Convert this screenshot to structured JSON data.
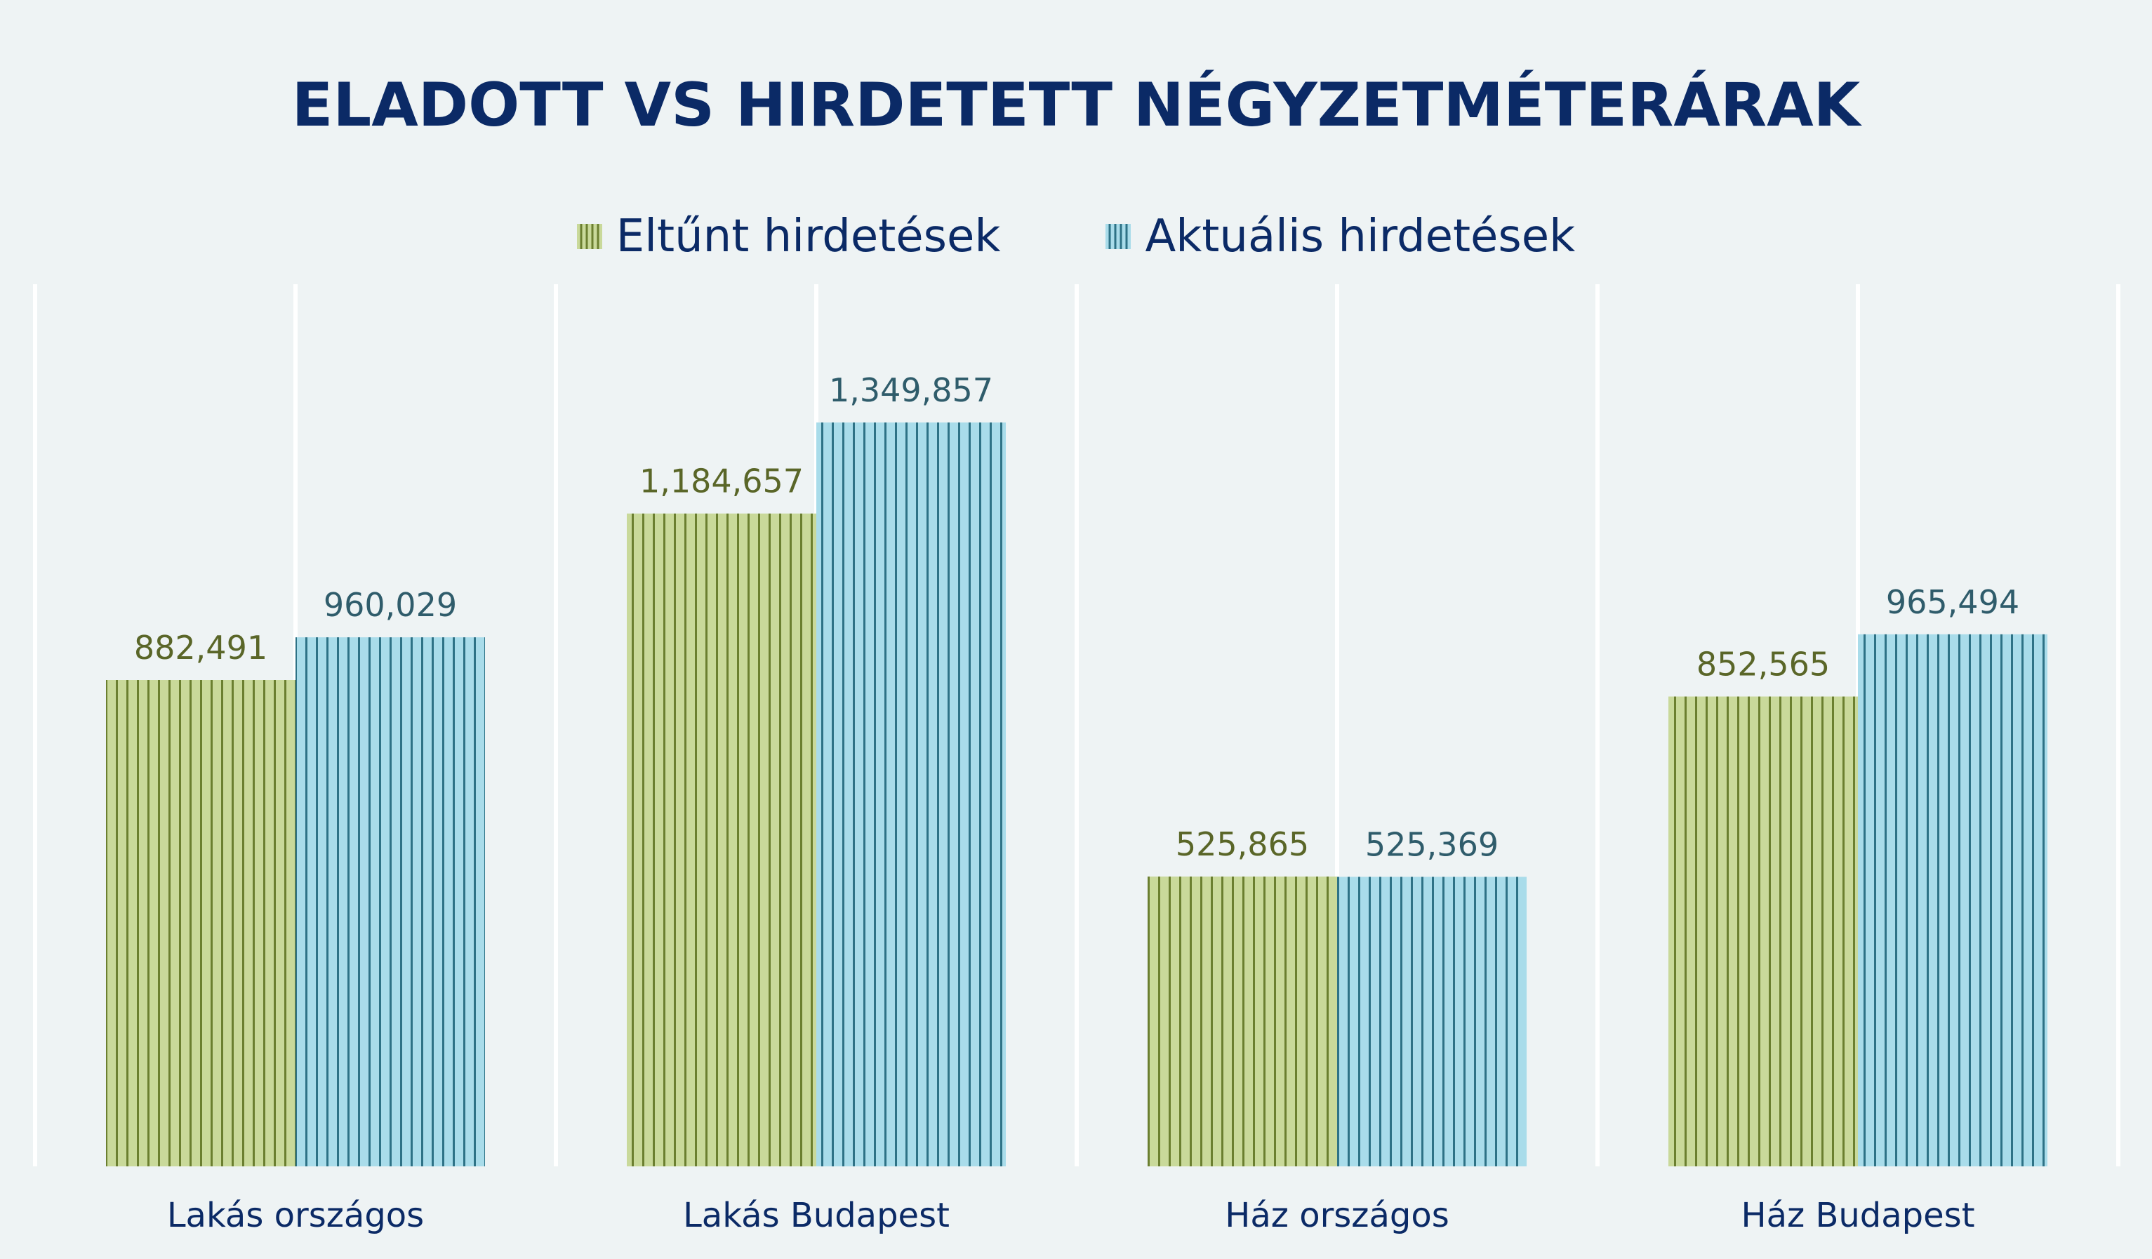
{
  "chart_data": {
    "type": "bar",
    "title": "ELADOTT VS HIRDETETT NÉGYZETMÉTERÁRAK",
    "categories": [
      "Lakás országos",
      "Lakás Budapest",
      "Ház országos",
      "Ház Budapest"
    ],
    "series": [
      {
        "name": "Eltűnt hirdetések",
        "values": [
          882491,
          1184657,
          525865,
          852565
        ],
        "labels": [
          "882,491",
          "1,184,657",
          "525,865",
          "852,565"
        ],
        "color": "#c9d99a",
        "stripe_color": "#6b7f30",
        "label_color": "#5a6628"
      },
      {
        "name": "Aktuális hirdetések",
        "values": [
          960029,
          1349857,
          525369,
          965494
        ],
        "labels": [
          "960,029",
          "1,349,857",
          "525,369",
          "965,494"
        ],
        "color": "#a9dcea",
        "stripe_color": "#2e7286",
        "label_color": "#2f5c6b"
      }
    ],
    "ylim": [
      0,
      1600000
    ],
    "grid": true,
    "legend_position": "top"
  }
}
